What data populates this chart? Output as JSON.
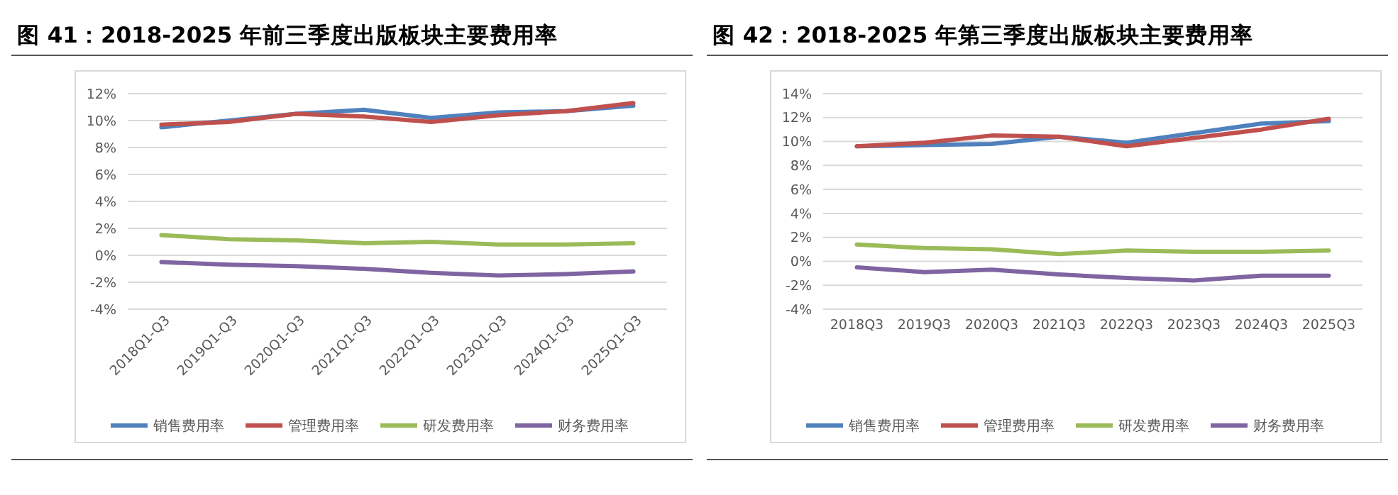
{
  "chart_data": [
    {
      "type": "line",
      "title": "图 41：2018-2025 年前三季度出版板块主要费用率",
      "categories": [
        "2018Q1-Q3",
        "2019Q1-Q3",
        "2020Q1-Q3",
        "2021Q1-Q3",
        "2022Q1-Q3",
        "2023Q1-Q3",
        "2024Q1-Q3",
        "2025Q1-Q3"
      ],
      "ylim": [
        -4,
        12
      ],
      "yticks": [
        {
          "value": -4,
          "label": "-4%"
        },
        {
          "value": -2,
          "label": "-2%"
        },
        {
          "value": 0,
          "label": "0%"
        },
        {
          "value": 2,
          "label": "2%"
        },
        {
          "value": 4,
          "label": "4%"
        },
        {
          "value": 6,
          "label": "6%"
        },
        {
          "value": 8,
          "label": "8%"
        },
        {
          "value": 10,
          "label": "10%"
        },
        {
          "value": 12,
          "label": "12%"
        }
      ],
      "grid": "y",
      "legend": "bottom",
      "marker": "none",
      "line_style": "solid",
      "series": [
        {
          "name": "销售费用率",
          "color": "#4f81bd",
          "values": [
            9.5,
            10.0,
            10.5,
            10.8,
            10.2,
            10.6,
            10.7,
            11.1
          ]
        },
        {
          "name": "管理费用率",
          "color": "#c0504d",
          "values": [
            9.7,
            9.9,
            10.5,
            10.3,
            9.9,
            10.4,
            10.7,
            11.3
          ]
        },
        {
          "name": "研发费用率",
          "color": "#9bbb59",
          "values": [
            1.5,
            1.2,
            1.1,
            0.9,
            1.0,
            0.8,
            0.8,
            0.9
          ]
        },
        {
          "name": "财务费用率",
          "color": "#8064a2",
          "values": [
            -0.5,
            -0.7,
            -0.8,
            -1.0,
            -1.3,
            -1.5,
            -1.4,
            -1.2
          ]
        }
      ]
    },
    {
      "type": "line",
      "title": "图 42：2018-2025 年第三季度出版板块主要费用率",
      "categories": [
        "2018Q3",
        "2019Q3",
        "2020Q3",
        "2021Q3",
        "2022Q3",
        "2023Q3",
        "2024Q3",
        "2025Q3"
      ],
      "ylim": [
        -4,
        14
      ],
      "yticks": [
        {
          "value": -4,
          "label": "-4%"
        },
        {
          "value": -2,
          "label": "-2%"
        },
        {
          "value": 0,
          "label": "0%"
        },
        {
          "value": 2,
          "label": "2%"
        },
        {
          "value": 4,
          "label": "4%"
        },
        {
          "value": 6,
          "label": "6%"
        },
        {
          "value": 8,
          "label": "8%"
        },
        {
          "value": 10,
          "label": "10%"
        },
        {
          "value": 12,
          "label": "12%"
        },
        {
          "value": 14,
          "label": "14%"
        }
      ],
      "grid": "y",
      "legend": "bottom",
      "marker": "none",
      "line_style": "solid",
      "series": [
        {
          "name": "销售费用率",
          "color": "#4f81bd",
          "values": [
            9.6,
            9.7,
            9.8,
            10.4,
            9.9,
            10.7,
            11.5,
            11.7
          ]
        },
        {
          "name": "管理费用率",
          "color": "#c0504d",
          "values": [
            9.6,
            9.9,
            10.5,
            10.4,
            9.6,
            10.3,
            11.0,
            11.9
          ]
        },
        {
          "name": "研发费用率",
          "color": "#9bbb59",
          "values": [
            1.4,
            1.1,
            1.0,
            0.6,
            0.9,
            0.8,
            0.8,
            0.9
          ]
        },
        {
          "name": "财务费用率",
          "color": "#8064a2",
          "values": [
            -0.5,
            -0.9,
            -0.7,
            -1.1,
            -1.4,
            -1.6,
            -1.2,
            -1.2
          ]
        }
      ]
    }
  ]
}
